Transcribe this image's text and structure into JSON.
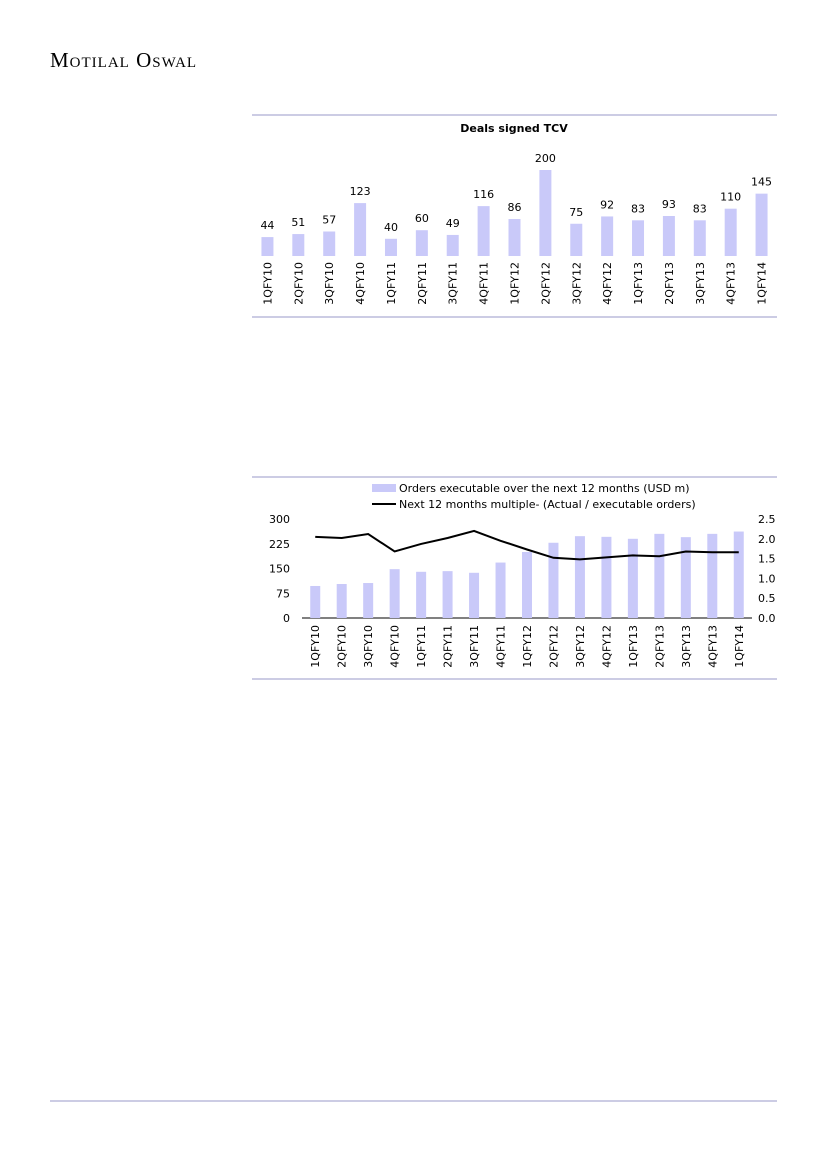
{
  "header": {
    "brand": "Motilal Oswal"
  },
  "chart_data": [
    {
      "type": "bar",
      "title": "Deals signed TCV",
      "color": "#c9c9f9",
      "categories": [
        "1QFY10",
        "2QFY10",
        "3QFY10",
        "4QFY10",
        "1QFY11",
        "2QFY11",
        "3QFY11",
        "4QFY11",
        "1QFY12",
        "2QFY12",
        "3QFY12",
        "4QFY12",
        "1QFY13",
        "2QFY13",
        "3QFY13",
        "4QFY13",
        "1QFY14"
      ],
      "values": [
        44,
        51,
        57,
        123,
        40,
        60,
        49,
        116,
        86,
        200,
        75,
        92,
        83,
        93,
        83,
        110,
        145
      ]
    },
    {
      "type": "bar-line",
      "categories": [
        "1QFY10",
        "2QFY10",
        "3QFY10",
        "4QFY10",
        "1QFY11",
        "2QFY11",
        "3QFY11",
        "4QFY11",
        "1QFY12",
        "2QFY12",
        "3QFY12",
        "4QFY12",
        "1QFY13",
        "2QFY13",
        "3QFY13",
        "4QFY13",
        "1QFY14"
      ],
      "series": [
        {
          "name": "Orders executable over the next 12 months (USD m)",
          "color": "#c9c9f9",
          "type": "bar",
          "values": [
            97,
            103,
            106,
            148,
            140,
            142,
            137,
            168,
            200,
            228,
            248,
            246,
            240,
            255,
            245,
            255,
            262
          ]
        },
        {
          "name": "Next 12 months multiple- (Actual  / executable orders)",
          "color": "#000000",
          "type": "line",
          "axis": "y2",
          "values": [
            2.05,
            2.02,
            2.12,
            1.68,
            1.87,
            2.02,
            2.2,
            1.95,
            1.73,
            1.52,
            1.48,
            1.53,
            1.58,
            1.56,
            1.68,
            1.66,
            1.66
          ]
        }
      ],
      "ylim": [
        0,
        300
      ],
      "yticks": [
        0,
        75,
        150,
        225,
        300
      ],
      "y2lim": [
        0,
        2.5
      ],
      "y2ticks": [
        {
          "value": 0,
          "label": "0.0"
        },
        0.5,
        {
          "value": 1,
          "label": "1.0"
        },
        1.5,
        {
          "value": 2,
          "label": "2.0"
        },
        2.5
      ],
      "legend": "top"
    }
  ]
}
